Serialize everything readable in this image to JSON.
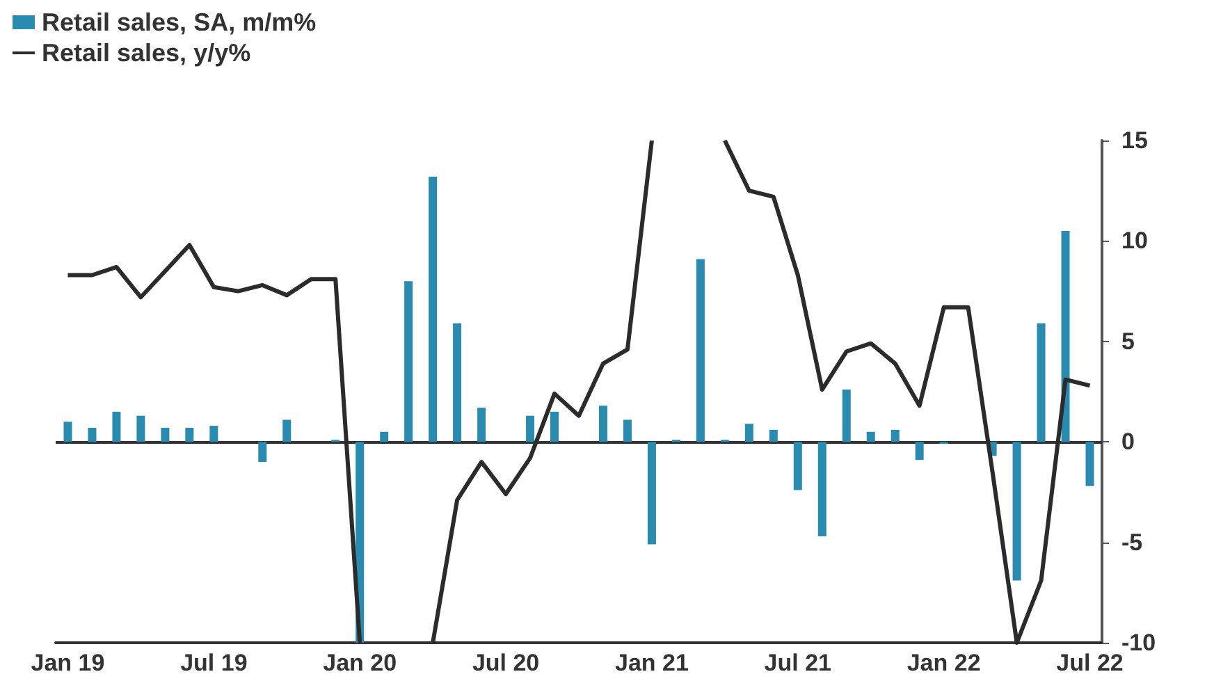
{
  "chart_data": {
    "type": "bar",
    "categories": [
      "Jan 19",
      null,
      null,
      null,
      null,
      null,
      "Jul 19",
      null,
      null,
      null,
      null,
      null,
      "Jan 20",
      null,
      null,
      null,
      null,
      null,
      "Jul 20",
      null,
      null,
      null,
      null,
      null,
      "Jan 21",
      null,
      null,
      null,
      null,
      null,
      "Jul 21",
      null,
      null,
      null,
      null,
      null,
      "Jan 22",
      null,
      null,
      null,
      null,
      null,
      "Jul 22"
    ],
    "series": [
      {
        "name": "Retail sales, SA, m/m%",
        "color": "#2a8bb0",
        "values": [
          1.0,
          0.7,
          1.5,
          1.3,
          0.7,
          0.7,
          0.8,
          0,
          -1.0,
          1.1,
          0,
          0.1,
          -10,
          0.5,
          8.0,
          13.2,
          5.9,
          1.7,
          0,
          1.3,
          1.5,
          0,
          1.8,
          1.1,
          -5.1,
          0.1,
          9.1,
          0.1,
          0.9,
          0.6,
          -2.4,
          -4.7,
          2.6,
          0.5,
          0.6,
          -0.9,
          -0.1,
          0,
          -0.7,
          -6.9,
          5.9,
          10.5,
          -2.2
        ]
      },
      {
        "name": "Retail sales, y/y%",
        "type": "line",
        "color": "#2b2b2b",
        "values": [
          8.3,
          8.3,
          8.7,
          7.2,
          8.5,
          9.8,
          7.7,
          7.5,
          7.8,
          7.3,
          8.1,
          8.1,
          -10,
          null,
          null,
          -10,
          -2.9,
          -1.0,
          -2.6,
          -0.8,
          2.4,
          1.3,
          3.9,
          4.6,
          15,
          null,
          null,
          15,
          12.5,
          12.2,
          8.3,
          2.6,
          4.5,
          4.9,
          3.9,
          1.8,
          6.7,
          6.7,
          -1.5,
          -10,
          -6.9,
          3.1,
          2.8
        ]
      }
    ],
    "ylim": [
      -10,
      15
    ],
    "yticks": [
      -10,
      -5,
      0,
      5,
      10,
      15
    ],
    "ref_lines": [
      {
        "axis": "y",
        "value": 0,
        "color": "#333333"
      }
    ],
    "grid": false,
    "legend": "top left",
    "marker": "none",
    "line_style": "solid"
  }
}
